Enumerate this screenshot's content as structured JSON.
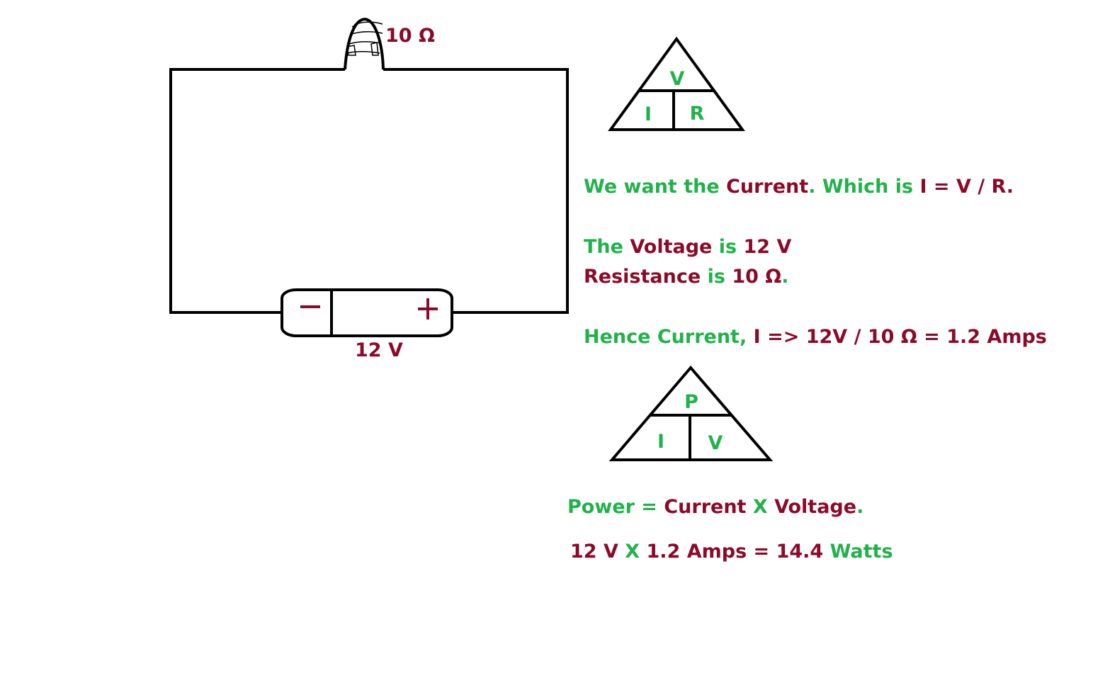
{
  "colors": {
    "green": "#21b24b",
    "red": "#8b0a2a",
    "ink": "#000000"
  },
  "circuit": {
    "resistor_label": "10 Ω",
    "battery_minus": "−",
    "battery_plus": "+",
    "battery_label": "12 V"
  },
  "triangle_vir": {
    "top": "V",
    "bottom_left": "I",
    "bottom_right": "R"
  },
  "triangle_piv": {
    "top": "P",
    "bottom_left": "I",
    "bottom_right": "V"
  },
  "explanation": {
    "line1": [
      {
        "text": "We want the ",
        "color": "green"
      },
      {
        "text": "Current",
        "color": "red"
      },
      {
        "text": ". Which is ",
        "color": "green"
      },
      {
        "text": "I = V / R.",
        "color": "red"
      }
    ],
    "line2": [
      {
        "text": "The ",
        "color": "green"
      },
      {
        "text": "Voltage ",
        "color": "red"
      },
      {
        "text": "is ",
        "color": "green"
      },
      {
        "text": "12 V",
        "color": "red"
      }
    ],
    "line3": [
      {
        "text": "Resistance ",
        "color": "red"
      },
      {
        "text": "is ",
        "color": "green"
      },
      {
        "text": "10 Ω",
        "color": "red"
      },
      {
        "text": ".",
        "color": "green"
      }
    ],
    "line4": [
      {
        "text": "Hence Current, ",
        "color": "green"
      },
      {
        "text": "I => 12V / 10 Ω = 1.2 Amps",
        "color": "red"
      }
    ],
    "line5": [
      {
        "text": "Power = ",
        "color": "green"
      },
      {
        "text": "Current ",
        "color": "red"
      },
      {
        "text": "X ",
        "color": "green"
      },
      {
        "text": "Voltage",
        "color": "red"
      },
      {
        "text": ".",
        "color": "green"
      }
    ],
    "line6": [
      {
        "text": "12 V ",
        "color": "red"
      },
      {
        "text": "X ",
        "color": "green"
      },
      {
        "text": "1.2 Amps = 14.4 ",
        "color": "red"
      },
      {
        "text": "Watts",
        "color": "green"
      }
    ]
  }
}
